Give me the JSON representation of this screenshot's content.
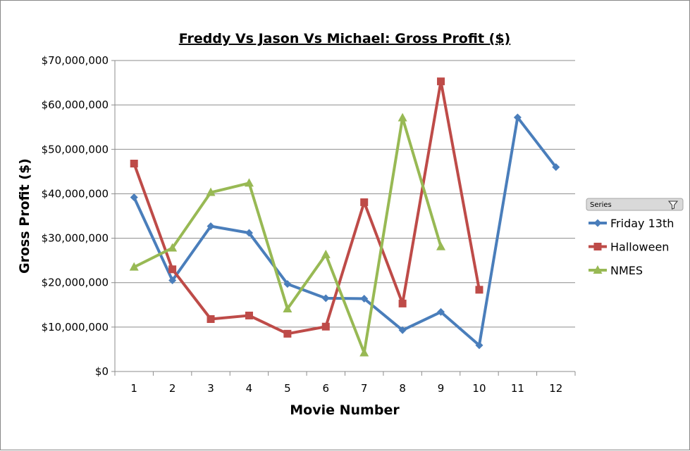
{
  "chart_data": {
    "type": "line",
    "title": "Freddy Vs Jason Vs Michael: Gross Profit ($)",
    "xlabel": "Movie Number",
    "ylabel": "Gross Profit ($)",
    "categories": [
      "1",
      "2",
      "3",
      "4",
      "5",
      "6",
      "7",
      "8",
      "9",
      "10",
      "11",
      "12"
    ],
    "ylim": [
      0,
      70000000
    ],
    "yticks": [
      0,
      10000000,
      20000000,
      30000000,
      40000000,
      50000000,
      60000000,
      70000000
    ],
    "ytick_labels": [
      "$0",
      "$10,000,000",
      "$20,000,000",
      "$30,000,000",
      "$40,000,000",
      "$50,000,000",
      "$60,000,000",
      "$70,000,000"
    ],
    "grid": true,
    "legend_position": "right",
    "legend_header": "Series",
    "series": [
      {
        "name": "Friday 13th",
        "color": "#4A7EBB",
        "marker": "diamond",
        "values": [
          39200000,
          20500000,
          32700000,
          31200000,
          19700000,
          16500000,
          16400000,
          9300000,
          13400000,
          5900000,
          57200000,
          46000000
        ]
      },
      {
        "name": "Halloween",
        "color": "#BE4B48",
        "marker": "square",
        "values": [
          46800000,
          23000000,
          11800000,
          12600000,
          8500000,
          10100000,
          38100000,
          15300000,
          65300000,
          18400000,
          null,
          null
        ]
      },
      {
        "name": "NMES",
        "color": "#98B954",
        "marker": "triangle",
        "values": [
          23500000,
          27800000,
          40300000,
          42400000,
          14100000,
          26300000,
          4200000,
          57100000,
          28100000,
          null,
          null,
          null
        ]
      }
    ]
  }
}
